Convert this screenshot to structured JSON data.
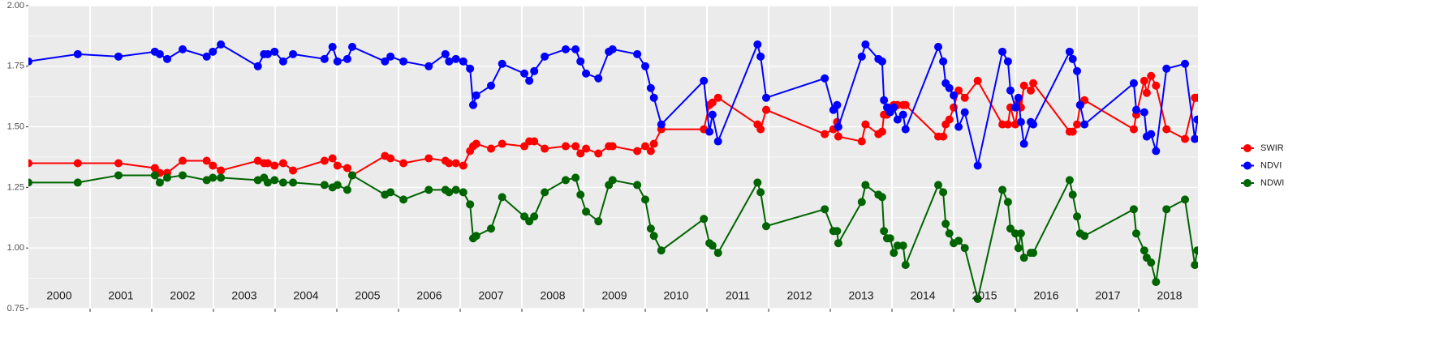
{
  "chart_data": {
    "type": "line",
    "xlim": [
      2000,
      2018.96
    ],
    "ylim": [
      0.75,
      2.0
    ],
    "yticks": [
      {
        "value": 0.75,
        "label": "0.75"
      },
      {
        "value": 1.0,
        "label": "1.00"
      },
      {
        "value": 1.25,
        "label": "1.25"
      },
      {
        "value": 1.5,
        "label": "1.50"
      },
      {
        "value": 1.75,
        "label": "1.75"
      },
      {
        "value": 2.0,
        "label": "2.00"
      }
    ],
    "xticks": [
      2001,
      2002,
      2003,
      2004,
      2005,
      2006,
      2007,
      2008,
      2009,
      2010,
      2011,
      2012,
      2013,
      2014,
      2015,
      2016,
      2017,
      2018
    ],
    "year_labels": [
      {
        "value": 2000.5,
        "label": "2000"
      },
      {
        "value": 2001.5,
        "label": "2001"
      },
      {
        "value": 2002.5,
        "label": "2002"
      },
      {
        "value": 2003.5,
        "label": "2003"
      },
      {
        "value": 2004.5,
        "label": "2004"
      },
      {
        "value": 2005.5,
        "label": "2005"
      },
      {
        "value": 2006.5,
        "label": "2006"
      },
      {
        "value": 2007.5,
        "label": "2007"
      },
      {
        "value": 2008.5,
        "label": "2008"
      },
      {
        "value": 2009.5,
        "label": "2009"
      },
      {
        "value": 2010.5,
        "label": "2010"
      },
      {
        "value": 2011.5,
        "label": "2011"
      },
      {
        "value": 2012.5,
        "label": "2012"
      },
      {
        "value": 2013.5,
        "label": "2013"
      },
      {
        "value": 2014.5,
        "label": "2014"
      },
      {
        "value": 2015.5,
        "label": "2015"
      },
      {
        "value": 2016.5,
        "label": "2016"
      },
      {
        "value": 2017.5,
        "label": "2017"
      },
      {
        "value": 2018.5,
        "label": "2018"
      }
    ],
    "grid": true,
    "legend": "right",
    "x": [
      2000.0,
      2000.8,
      2001.46,
      2002.05,
      2002.13,
      2002.25,
      2002.5,
      2002.89,
      2002.99,
      2003.12,
      2003.72,
      2003.82,
      2003.88,
      2003.99,
      2004.13,
      2004.29,
      2004.8,
      2004.93,
      2005.01,
      2005.17,
      2005.25,
      2005.78,
      2005.87,
      2006.08,
      2006.49,
      2006.76,
      2006.82,
      2006.93,
      2007.05,
      2007.16,
      2007.21,
      2007.26,
      2007.5,
      2007.68,
      2008.04,
      2008.12,
      2008.2,
      2008.37,
      2008.71,
      2008.87,
      2008.95,
      2009.04,
      2009.24,
      2009.41,
      2009.47,
      2009.87,
      2010.0,
      2010.09,
      2010.14,
      2010.26,
      2010.95,
      2011.04,
      2011.09,
      2011.18,
      2011.82,
      2011.87,
      2011.96,
      2012.91,
      2013.05,
      2013.11,
      2013.13,
      2013.51,
      2013.57,
      2013.78,
      2013.84,
      2013.87,
      2013.92,
      2013.97,
      2014.03,
      2014.09,
      2014.18,
      2014.22,
      2014.75,
      2014.83,
      2014.87,
      2014.93,
      2015.0,
      2015.08,
      2015.18,
      2015.39,
      2015.79,
      2015.88,
      2015.92,
      2016.0,
      2016.05,
      2016.09,
      2016.14,
      2016.25,
      2016.29,
      2016.88,
      2016.93,
      2017.0,
      2017.05,
      2017.12,
      2017.92,
      2017.96,
      2018.09,
      2018.13,
      2018.2,
      2018.28,
      2018.45,
      2018.75,
      2018.91,
      2018.95
    ],
    "series": [
      {
        "name": "SWIR",
        "color": "#ff0000",
        "values": [
          1.35,
          1.35,
          1.35,
          1.33,
          1.31,
          1.31,
          1.36,
          1.36,
          1.34,
          1.32,
          1.36,
          1.35,
          1.35,
          1.34,
          1.35,
          1.32,
          1.36,
          1.37,
          1.34,
          1.33,
          1.3,
          1.38,
          1.37,
          1.35,
          1.37,
          1.36,
          1.35,
          1.35,
          1.34,
          1.4,
          1.42,
          1.43,
          1.41,
          1.43,
          1.42,
          1.44,
          1.44,
          1.41,
          1.42,
          1.42,
          1.39,
          1.41,
          1.39,
          1.42,
          1.42,
          1.4,
          1.42,
          1.4,
          1.43,
          1.49,
          1.49,
          1.59,
          1.6,
          1.62,
          1.51,
          1.49,
          1.57,
          1.47,
          1.49,
          1.52,
          1.46,
          1.44,
          1.51,
          1.47,
          1.48,
          1.55,
          1.55,
          1.58,
          1.59,
          1.59,
          1.59,
          1.59,
          1.46,
          1.46,
          1.51,
          1.53,
          1.58,
          1.65,
          1.62,
          1.69,
          1.51,
          1.51,
          1.58,
          1.51,
          1.6,
          1.58,
          1.67,
          1.65,
          1.68,
          1.48,
          1.48,
          1.51,
          1.59,
          1.61,
          1.49,
          1.55,
          1.69,
          1.64,
          1.71,
          1.67,
          1.49,
          1.45,
          1.62,
          1.62
        ]
      },
      {
        "name": "NDVI",
        "color": "#0000ff",
        "values": [
          1.77,
          1.8,
          1.79,
          1.81,
          1.8,
          1.78,
          1.82,
          1.79,
          1.81,
          1.84,
          1.75,
          1.8,
          1.8,
          1.81,
          1.77,
          1.8,
          1.78,
          1.83,
          1.77,
          1.78,
          1.83,
          1.77,
          1.79,
          1.77,
          1.75,
          1.8,
          1.77,
          1.78,
          1.77,
          1.74,
          1.59,
          1.63,
          1.67,
          1.76,
          1.72,
          1.69,
          1.73,
          1.79,
          1.82,
          1.82,
          1.77,
          1.72,
          1.7,
          1.81,
          1.82,
          1.8,
          1.75,
          1.66,
          1.62,
          1.51,
          1.69,
          1.48,
          1.55,
          1.44,
          1.84,
          1.79,
          1.62,
          1.7,
          1.57,
          1.59,
          1.5,
          1.79,
          1.84,
          1.78,
          1.77,
          1.61,
          1.58,
          1.56,
          1.58,
          1.53,
          1.55,
          1.49,
          1.83,
          1.77,
          1.68,
          1.66,
          1.63,
          1.5,
          1.56,
          1.34,
          1.81,
          1.77,
          1.65,
          1.58,
          1.62,
          1.52,
          1.43,
          1.52,
          1.51,
          1.81,
          1.78,
          1.73,
          1.59,
          1.51,
          1.68,
          1.57,
          1.56,
          1.46,
          1.47,
          1.4,
          1.74,
          1.76,
          1.45,
          1.53
        ]
      },
      {
        "name": "NDWI",
        "color": "#006400",
        "values": [
          1.27,
          1.27,
          1.3,
          1.3,
          1.27,
          1.29,
          1.3,
          1.28,
          1.29,
          1.29,
          1.28,
          1.29,
          1.27,
          1.28,
          1.27,
          1.27,
          1.26,
          1.25,
          1.26,
          1.24,
          1.3,
          1.22,
          1.23,
          1.2,
          1.24,
          1.24,
          1.23,
          1.24,
          1.23,
          1.18,
          1.04,
          1.05,
          1.08,
          1.21,
          1.13,
          1.11,
          1.13,
          1.23,
          1.28,
          1.29,
          1.22,
          1.15,
          1.11,
          1.26,
          1.28,
          1.26,
          1.2,
          1.08,
          1.05,
          0.99,
          1.12,
          1.02,
          1.01,
          0.98,
          1.27,
          1.23,
          1.09,
          1.16,
          1.07,
          1.07,
          1.02,
          1.19,
          1.26,
          1.22,
          1.21,
          1.07,
          1.04,
          1.04,
          0.98,
          1.01,
          1.01,
          0.93,
          1.26,
          1.23,
          1.1,
          1.06,
          1.02,
          1.03,
          1.0,
          0.79,
          1.24,
          1.19,
          1.08,
          1.06,
          1.0,
          1.06,
          0.96,
          0.98,
          0.98,
          1.28,
          1.22,
          1.13,
          1.06,
          1.05,
          1.16,
          1.06,
          0.99,
          0.96,
          0.94,
          0.86,
          1.16,
          1.2,
          0.93,
          0.99
        ]
      }
    ]
  }
}
